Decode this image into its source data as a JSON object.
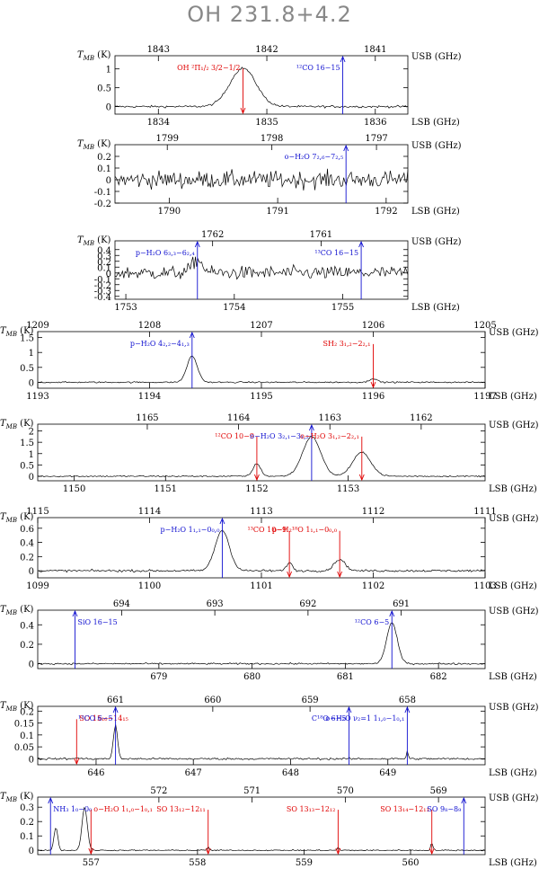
{
  "title": "OH 231.8+4.2",
  "yunit": "(K)",
  "tmb_label": "T",
  "tmb_sub": "MB",
  "usb_label": "USB (GHz)",
  "lsb_label": "LSB (GHz)",
  "colors": {
    "red": "#e00000",
    "blue": "#1010d0",
    "ink": "#000000"
  },
  "chart_data": [
    {
      "id": "p1",
      "type": "line",
      "usb": {
        "range": [
          1843.4,
          1840.7
        ],
        "ticks": [
          1843,
          1842,
          1841
        ]
      },
      "lsb": {
        "range": [
          1833.6,
          1836.3
        ],
        "ticks": [
          1834,
          1835,
          1836
        ]
      },
      "ylim": [
        -0.2,
        1.35
      ],
      "yticks": [
        0,
        0.5,
        1
      ],
      "baseline": 0,
      "noise": 0.028,
      "peaks": [
        {
          "center": 1834.78,
          "amp": 1.02,
          "width": 0.17
        }
      ],
      "lines": [
        {
          "label": "OH ²Π₁/₂ 3/2−1/2",
          "at": 1834.78,
          "color": "red",
          "dir": "down"
        },
        {
          "label": "¹²CO 16−15",
          "at": 1835.7,
          "color": "blue",
          "dir": "up"
        }
      ]
    },
    {
      "id": "p2",
      "type": "line",
      "usb": {
        "range": [
          1799.5,
          1796.7
        ],
        "ticks": [
          1799,
          1798,
          1797
        ]
      },
      "lsb": {
        "range": [
          1789.5,
          1792.2
        ],
        "ticks": [
          1790,
          1791,
          1792
        ]
      },
      "ylim": [
        -0.2,
        0.3
      ],
      "yticks": [
        -0.2,
        -0.1,
        0,
        0.1,
        0.2
      ],
      "baseline": 0,
      "noise": 0.07,
      "peaks": [],
      "lines": [
        {
          "label": "o−H₂O 7₂,₆−7₂,₅",
          "at": 1791.63,
          "color": "blue",
          "dir": "up"
        }
      ]
    },
    {
      "id": "p3",
      "type": "line",
      "usb": {
        "range": [
          1762.9,
          1760.2
        ],
        "ticks": [
          1762,
          1761
        ]
      },
      "lsb": {
        "range": [
          1752.9,
          1755.6
        ],
        "ticks": [
          1753,
          1754,
          1755
        ]
      },
      "ylim": [
        -0.45,
        0.55
      ],
      "yticks": [
        -0.4,
        -0.3,
        -0.2,
        -0.1,
        0,
        0.1,
        0.2,
        0.3,
        0.4
      ],
      "baseline": 0,
      "noise": 0.11,
      "peaks": [
        {
          "center": 1753.66,
          "amp": 0.22,
          "width": 0.07
        }
      ],
      "lines": [
        {
          "label": "p−H₂O 6₃,₃−6₂,₄",
          "at": 1753.66,
          "color": "blue",
          "dir": "up"
        },
        {
          "label": "¹³CO 16−15",
          "at": 1755.17,
          "color": "blue",
          "dir": "up"
        }
      ]
    },
    {
      "id": "p4",
      "type": "line",
      "usb": {
        "range": [
          1209,
          1205
        ],
        "ticks": [
          1209,
          1208,
          1207,
          1206,
          1205
        ]
      },
      "lsb": {
        "range": [
          1193,
          1197
        ],
        "ticks": [
          1193,
          1194,
          1195,
          1196,
          1197
        ]
      },
      "ylim": [
        -0.2,
        1.7
      ],
      "yticks": [
        0,
        0.5,
        1,
        1.5
      ],
      "baseline": 0,
      "noise": 0.022,
      "peaks": [
        {
          "center": 1194.38,
          "amp": 0.88,
          "width": 0.065
        },
        {
          "center": 1196.0,
          "amp": 0.13,
          "width": 0.045
        }
      ],
      "lines": [
        {
          "label": "p−H₂O 4₂,₂−4₁,₃",
          "at": 1194.38,
          "color": "blue",
          "dir": "up"
        },
        {
          "label": "SH₂ 3₁,₂−2₂,₁",
          "at": 1196.0,
          "color": "red",
          "dir": "down"
        }
      ]
    },
    {
      "id": "p5",
      "type": "line",
      "usb": {
        "range": [
          1166.2,
          1161.3
        ],
        "ticks": [
          1165,
          1164,
          1163,
          1162
        ]
      },
      "lsb": {
        "range": [
          1149.6,
          1154.5
        ],
        "ticks": [
          1150,
          1151,
          1152,
          1153
        ]
      },
      "ylim": [
        -0.2,
        2.3
      ],
      "yticks": [
        0,
        0.5,
        1,
        1.5,
        2
      ],
      "baseline": 0,
      "noise": 0.03,
      "peaks": [
        {
          "center": 1152.0,
          "amp": 0.55,
          "width": 0.06
        },
        {
          "center": 1152.6,
          "amp": 1.75,
          "width": 0.14
        },
        {
          "center": 1153.15,
          "amp": 1.05,
          "width": 0.14
        }
      ],
      "lines": [
        {
          "label": "¹²CO 10−9",
          "at": 1152.0,
          "color": "red",
          "dir": "down"
        },
        {
          "label": "o−H₂O 3₂,₁−3₁,₂",
          "at": 1152.6,
          "color": "blue",
          "dir": "up"
        },
        {
          "label": "o−H₂O 3₁,₂−2₂,₁",
          "at": 1153.15,
          "color": "red",
          "dir": "down"
        }
      ]
    },
    {
      "id": "p6",
      "type": "line",
      "usb": {
        "range": [
          1115,
          1111
        ],
        "ticks": [
          1115,
          1114,
          1113,
          1112,
          1111
        ]
      },
      "lsb": {
        "range": [
          1099,
          1103
        ],
        "ticks": [
          1099,
          1100,
          1101,
          1102,
          1103
        ]
      },
      "ylim": [
        -0.1,
        0.75
      ],
      "yticks": [
        0,
        0.2,
        0.4,
        0.6
      ],
      "baseline": 0,
      "noise": 0.015,
      "peaks": [
        {
          "center": 1100.65,
          "amp": 0.57,
          "width": 0.09
        },
        {
          "center": 1101.25,
          "amp": 0.12,
          "width": 0.035
        },
        {
          "center": 1101.7,
          "amp": 0.16,
          "width": 0.07
        }
      ],
      "lines": [
        {
          "label": "p−H₂O 1₁,₁−0₀,₀",
          "at": 1100.65,
          "color": "blue",
          "dir": "up"
        },
        {
          "label": "¹³CO 10−9",
          "at": 1101.25,
          "color": "red",
          "dir": "down"
        },
        {
          "label": "p−H₂¹⁸O 1₁,₁−0₀,₀",
          "at": 1101.7,
          "color": "red",
          "dir": "down"
        }
      ]
    },
    {
      "id": "p7",
      "type": "line",
      "usb": {
        "range": [
          694.9,
          690.1
        ],
        "ticks": [
          694,
          693,
          692,
          691
        ]
      },
      "lsb": {
        "range": [
          677.7,
          682.5
        ],
        "ticks": [
          679,
          680,
          681,
          682
        ]
      },
      "ylim": [
        -0.05,
        0.55
      ],
      "yticks": [
        0,
        0.2,
        0.4
      ],
      "baseline": 0,
      "noise": 0.008,
      "peaks": [
        {
          "center": 681.5,
          "amp": 0.42,
          "width": 0.08
        }
      ],
      "lines": [
        {
          "label": "SiO 16−15",
          "at": 678.1,
          "color": "blue",
          "dir": "up"
        },
        {
          "label": "¹²CO 6−5",
          "at": 681.5,
          "color": "blue",
          "dir": "up"
        }
      ]
    },
    {
      "id": "p8",
      "type": "line",
      "usb": {
        "range": [
          661.8,
          657.2
        ],
        "ticks": [
          661,
          660,
          659,
          658
        ]
      },
      "lsb": {
        "range": [
          645.4,
          650.0
        ],
        "ticks": [
          646,
          647,
          648,
          649
        ]
      },
      "ylim": [
        -0.025,
        0.22
      ],
      "yticks": [
        0,
        0.05,
        0.1,
        0.15,
        0.2
      ],
      "baseline": 0,
      "noise": 0.004,
      "peaks": [
        {
          "center": 646.2,
          "amp": 0.14,
          "width": 0.03
        },
        {
          "center": 645.8,
          "amp": 0.006,
          "width": 0.02
        },
        {
          "center": 649.2,
          "amp": 0.035,
          "width": 0.012
        }
      ],
      "lines": [
        {
          "label": "SO 15₁₆−14₁₅",
          "at": 645.8,
          "color": "red",
          "dir": "down"
        },
        {
          "label": "¹³CO 6−5",
          "at": 646.2,
          "color": "blue",
          "dir": "up"
        },
        {
          "label": "C¹⁸O 6−5",
          "at": 648.6,
          "color": "blue",
          "dir": "up"
        },
        {
          "label": "o−H₂O ν₂=1 1₁,₀−1₀,₁",
          "at": 649.2,
          "color": "blue",
          "dir": "up"
        }
      ]
    },
    {
      "id": "p9",
      "type": "line",
      "usb": {
        "range": [
          573.3,
          568.5
        ],
        "ticks": [
          572,
          571,
          570,
          569
        ]
      },
      "lsb": {
        "range": [
          556.5,
          560.7
        ],
        "ticks": [
          557,
          558,
          559,
          560
        ]
      },
      "ylim": [
        -0.03,
        0.37
      ],
      "yticks": [
        0,
        0.1,
        0.2,
        0.3
      ],
      "baseline": 0,
      "noise": 0.004,
      "peaks": [
        {
          "center": 556.67,
          "amp": 0.16,
          "width": 0.025
        },
        {
          "center": 556.94,
          "amp": 0.3,
          "width": 0.035
        },
        {
          "center": 558.1,
          "amp": 0.025,
          "width": 0.012
        },
        {
          "center": 559.32,
          "amp": 0.022,
          "width": 0.012
        },
        {
          "center": 560.2,
          "amp": 0.05,
          "width": 0.015
        }
      ],
      "lines": [
        {
          "label": "NH₃ 1₀−0₀",
          "at": 556.62,
          "color": "blue",
          "dir": "up"
        },
        {
          "label": "o−H₂O 1₁,₀−1₀,₁",
          "at": 557.0,
          "color": "red",
          "dir": "down"
        },
        {
          "label": "SO 13₁₂−12₁₁",
          "at": 558.1,
          "color": "red",
          "dir": "down"
        },
        {
          "label": "SO 13₁₃−12₁₂",
          "at": 559.32,
          "color": "red",
          "dir": "down"
        },
        {
          "label": "SO 13₁₄−12₁₃",
          "at": 560.2,
          "color": "red",
          "dir": "down"
        },
        {
          "label": "SO 9₈−8₉",
          "at": 560.5,
          "color": "blue",
          "dir": "up"
        }
      ]
    }
  ]
}
